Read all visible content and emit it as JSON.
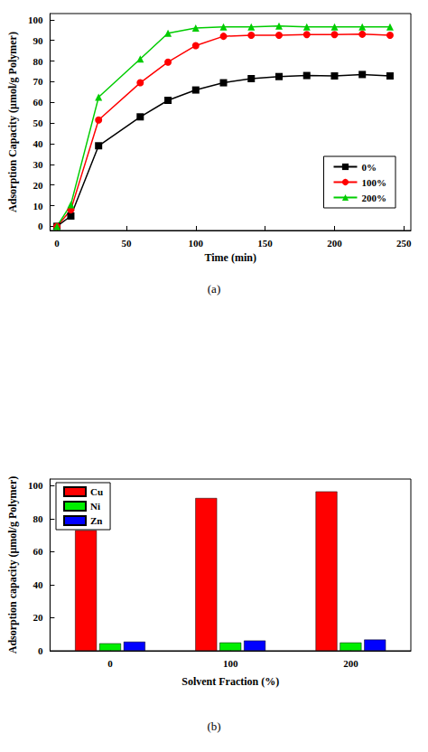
{
  "chart_data": [
    {
      "type": "line",
      "caption": "(a)",
      "x_label": "Time (min)",
      "y_label": "Adsorption Capacity (μmol/g Polymer)",
      "x": [
        0,
        10,
        30,
        60,
        80,
        100,
        120,
        140,
        160,
        180,
        200,
        220,
        240
      ],
      "series": [
        {
          "name": "0%",
          "color": "#000000",
          "marker": "square",
          "line_style": "solid",
          "values": [
            0,
            5,
            39,
            53,
            61,
            66,
            69.5,
            71.5,
            72.5,
            73,
            72.8,
            73.5,
            72.8
          ]
        },
        {
          "name": "100%",
          "color": "#ff0000",
          "marker": "circle",
          "line_style": "solid",
          "values": [
            0,
            8,
            51.5,
            69.5,
            79.5,
            87.5,
            92,
            92.5,
            92.5,
            92.8,
            92.8,
            93,
            92.5
          ]
        },
        {
          "name": "200%",
          "color": "#00cc00",
          "marker": "triangle",
          "line_style": "solid",
          "values": [
            0,
            10.5,
            62.5,
            81,
            93.5,
            96,
            96.5,
            96.5,
            97,
            96.5,
            96.5,
            96.5,
            96.5
          ]
        }
      ],
      "xlim": [
        -5,
        255
      ],
      "xticks": [
        0,
        50,
        100,
        150,
        200,
        250
      ],
      "ylim": [
        -2,
        103
      ],
      "yticks": [
        0,
        10,
        20,
        30,
        40,
        50,
        60,
        70,
        80,
        90,
        100
      ],
      "grid": false,
      "legend": "bottom-right"
    },
    {
      "type": "bar",
      "caption": "(b)",
      "x_label": "Solvent Fraction (%)",
      "y_label": "Adsorption capacity (μmol/g Polymer)",
      "categories": [
        "0",
        "100",
        "200"
      ],
      "series": [
        {
          "name": "Cu",
          "color": "#ff0000",
          "values": [
            73,
            92.5,
            96.5
          ]
        },
        {
          "name": "Ni",
          "color": "#00ee00",
          "values": [
            4.5,
            5,
            5
          ]
        },
        {
          "name": "Zn",
          "color": "#0000ff",
          "values": [
            5.5,
            6.2,
            6.8
          ]
        }
      ],
      "ylim": [
        0,
        104
      ],
      "yticks": [
        0,
        20,
        40,
        60,
        80,
        100
      ],
      "grid": false,
      "legend": "top-left"
    }
  ]
}
